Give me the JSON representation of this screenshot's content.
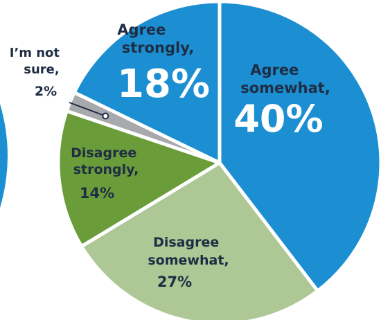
{
  "chart_data": {
    "type": "pie",
    "slices": [
      {
        "label": "Agree somewhat,",
        "value": 40,
        "display": "40%",
        "color": "#1b8fd2"
      },
      {
        "label": "Disagree somewhat,",
        "value": 27,
        "display": "27%",
        "color": "#adc895"
      },
      {
        "label": "Disagree strongly,",
        "value": 14,
        "display": "14%",
        "color": "#6a9c3a"
      },
      {
        "label": "I'm not sure,",
        "value": 2,
        "display": "2%",
        "color": "#a7a9ac"
      },
      {
        "label": "Agree strongly,",
        "value": 18,
        "display": "18%",
        "color": "#1b8fd2"
      }
    ],
    "legend": "none",
    "label_colors": {
      "on_blue": "#ffffff",
      "on_green": "#1f2d44",
      "outside": "#1f2d44"
    },
    "partial_chart_left_color": "#1b8fd2"
  }
}
